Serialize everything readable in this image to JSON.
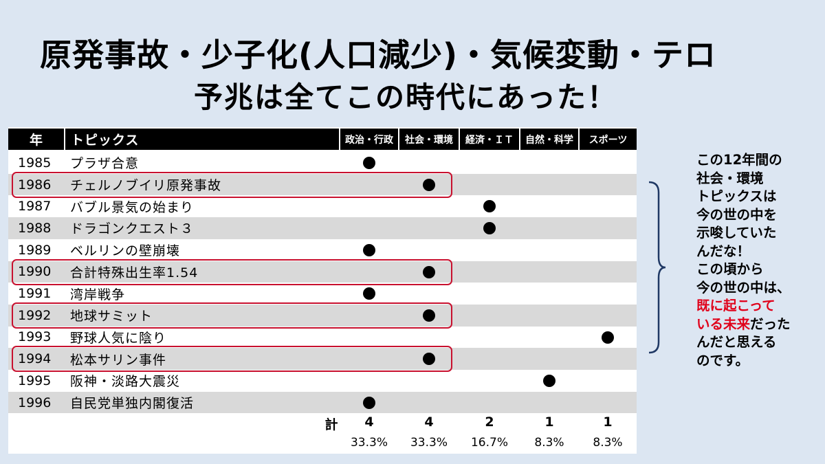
{
  "title": {
    "line1": "原発事故・少子化(人口減少)・気候変動・テロ",
    "line2": "予兆は全てこの時代にあった！"
  },
  "table": {
    "headers": {
      "year": "年",
      "topic": "トピックス",
      "categories": [
        "政治・行政",
        "社会・環境",
        "経済・ＩＴ",
        "自然・科学",
        "スポーツ"
      ]
    },
    "rows": [
      {
        "year": "1985",
        "topic": "プラザ合意",
        "category": 0,
        "highlighted": false
      },
      {
        "year": "1986",
        "topic": "チェルノブイリ原発事故",
        "category": 1,
        "highlighted": true
      },
      {
        "year": "1987",
        "topic": "バブル景気の始まり",
        "category": 2,
        "highlighted": false
      },
      {
        "year": "1988",
        "topic": "ドラゴンクエスト３",
        "category": 2,
        "highlighted": false
      },
      {
        "year": "1989",
        "topic": "ベルリンの壁崩壊",
        "category": 0,
        "highlighted": false
      },
      {
        "year": "1990",
        "topic": "合計特殊出生率1.54",
        "category": 1,
        "highlighted": true
      },
      {
        "year": "1991",
        "topic": "湾岸戦争",
        "category": 0,
        "highlighted": false
      },
      {
        "year": "1992",
        "topic": "地球サミット",
        "category": 1,
        "highlighted": true
      },
      {
        "year": "1993",
        "topic": "野球人気に陰り",
        "category": 4,
        "highlighted": false
      },
      {
        "year": "1994",
        "topic": "松本サリン事件",
        "category": 1,
        "highlighted": true
      },
      {
        "year": "1995",
        "topic": "阪神・淡路大震災",
        "category": 3,
        "highlighted": false
      },
      {
        "year": "1996",
        "topic": "自民党単独内閣復活",
        "category": 0,
        "highlighted": false
      }
    ],
    "total_label": "計",
    "totals": [
      "4",
      "4",
      "2",
      "1",
      "1"
    ],
    "percents": [
      "33.3%",
      "33.3%",
      "16.7%",
      "8.3%",
      "8.3%"
    ]
  },
  "side_note": {
    "lines": [
      "この12年間の",
      "社会・環境",
      "トピックスは",
      "今の世の中を",
      "示唆していた",
      "んだな！",
      "この頃から",
      "今の世の中は、"
    ],
    "red_line1": "既に起こって",
    "red_part2": "いる未来",
    "after_red": "だった",
    "tail_lines": [
      "んだと思える",
      "のです。"
    ]
  },
  "colors": {
    "background": "#dce6f2",
    "header_bg": "#000000",
    "highlight_border": "#c8102e",
    "emphasis_red": "#e0001a",
    "row_shade": "#d9d9d9"
  }
}
